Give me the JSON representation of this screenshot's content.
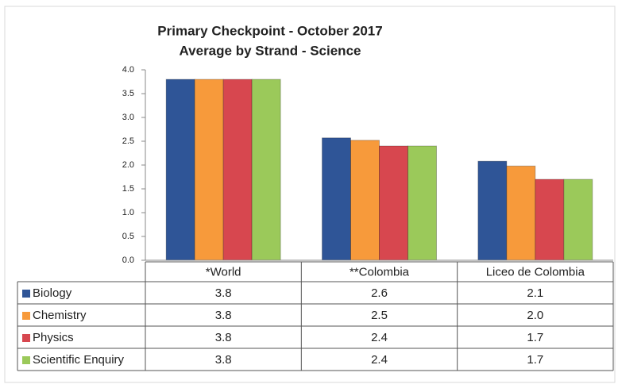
{
  "chart_data": {
    "type": "bar",
    "title": "Primary Checkpoint - October 2017",
    "subtitle": "Average by Strand - Science",
    "categories": [
      "*World",
      "**Colombia",
      "Liceo de Colombia"
    ],
    "series": [
      {
        "name": "Biology",
        "color": "#2f5597",
        "values": [
          3.8,
          2.57,
          2.08
        ],
        "value_labels": [
          "3.8",
          "2.6",
          "2.1"
        ]
      },
      {
        "name": "Chemistry",
        "color": "#f79a3b",
        "values": [
          3.8,
          2.52,
          1.98
        ],
        "value_labels": [
          "3.8",
          "2.5",
          "2.0"
        ]
      },
      {
        "name": "Physics",
        "color": "#d7474f",
        "values": [
          3.8,
          2.4,
          1.7
        ],
        "value_labels": [
          "3.8",
          "2.4",
          "1.7"
        ]
      },
      {
        "name": "Scientific Enquiry",
        "color": "#9bc95a",
        "values": [
          3.8,
          2.4,
          1.7
        ],
        "value_labels": [
          "3.8",
          "2.4",
          "1.7"
        ]
      }
    ],
    "ylim": [
      0,
      4
    ],
    "yticks": [
      {
        "value": 0,
        "label": "0.0"
      },
      0.5,
      {
        "value": 1,
        "label": "1.0"
      },
      1.5,
      {
        "value": 2,
        "label": "2.0"
      },
      2.5,
      {
        "value": 3,
        "label": "3.0"
      },
      3.5,
      {
        "value": 4,
        "label": "4.0"
      }
    ],
    "grid": false
  }
}
